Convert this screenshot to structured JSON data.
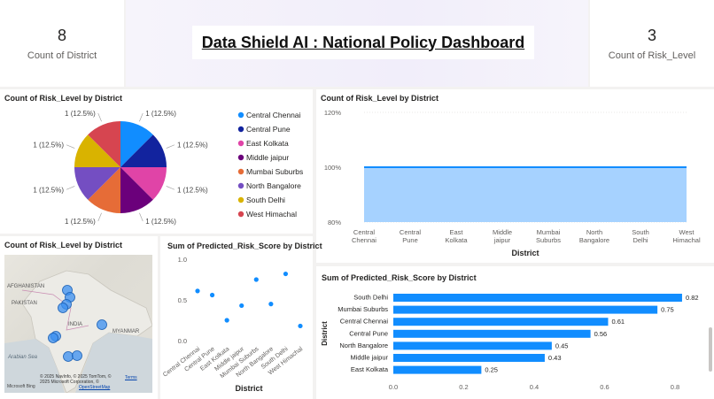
{
  "kpis": {
    "district_count": {
      "value": "8",
      "label": "Count of District"
    },
    "risk_level_count": {
      "value": "3",
      "label": "Count of Risk_Level"
    }
  },
  "header": {
    "title": "Data Shield AI : National Policy Dashboard"
  },
  "colors": {
    "pie": [
      "#118dff",
      "#12239e",
      "#e044a7",
      "#6b007b",
      "#e66c37",
      "#744ec2",
      "#d9b300",
      "#d64550"
    ],
    "bar": "#118dff",
    "area_fill": "#a6d2ff",
    "area_line": "#118dff",
    "map_bubble": "#3b8ff0"
  },
  "pie_visual": {
    "title": "Count of Risk_Level by District",
    "chart_data": {
      "type": "pie",
      "categories": [
        "Central Chennai",
        "Central Pune",
        "East Kolkata",
        "Middle jaipur",
        "Mumbai Suburbs",
        "North Bangalore",
        "South Delhi",
        "West Himachal"
      ],
      "values": [
        1,
        1,
        1,
        1,
        1,
        1,
        1,
        1
      ],
      "data_labels": [
        "1 (12.5%)",
        "1 (12.5%)",
        "1 (12.5%)",
        "1 (12.5%)",
        "1 (12.5%)",
        "1 (12.5%)",
        "1 (12.5%)",
        "1 (12.5%)"
      ],
      "legend_placement": "right"
    }
  },
  "area_visual": {
    "title": "Count of Risk_Level by District",
    "chart_data": {
      "type": "area",
      "categories": [
        "Central Chennai",
        "Central Pune",
        "East Kolkata",
        "Middle jaipur",
        "Mumbai Suburbs",
        "North Bangalore",
        "South Delhi",
        "West Himachal"
      ],
      "values": [
        100,
        100,
        100,
        100,
        100,
        100,
        100,
        100
      ],
      "xlabel": "District",
      "ylim": [
        80,
        120
      ],
      "yticks": [
        "80%",
        "100%",
        "120%"
      ],
      "grid": true
    }
  },
  "map_visual": {
    "title": "Count of Risk_Level by District",
    "labels": [
      "AFGHANISTAN",
      "PAKISTAN",
      "INDIA",
      "MYANMAR",
      "Arabian Sea"
    ],
    "attribution": [
      "© 2025 NavInfo, © 2025 TomTom, ©",
      "2025 Microsoft Corporation, ©",
      "OpenStreetMap"
    ],
    "terms": "Terms",
    "logo": "Microsoft Bing"
  },
  "scatter_visual": {
    "title": "Sum of Predicted_Risk_Score by District",
    "chart_data": {
      "type": "scatter",
      "categories": [
        "Central Chennai",
        "Central Pune",
        "East Kolkata",
        "Middle jaipur",
        "Mumbai Suburbs",
        "North Bangalore",
        "South Delhi",
        "West Himachal"
      ],
      "values": [
        0.61,
        0.56,
        0.25,
        0.43,
        0.75,
        0.45,
        0.82,
        0.18
      ],
      "xlabel": "District",
      "ylim": [
        0,
        1
      ],
      "yticks": [
        "0.0",
        "0.5",
        "1.0"
      ]
    }
  },
  "hbar_visual": {
    "title": "Sum of Predicted_Risk_Score by District",
    "chart_data": {
      "type": "bar",
      "orientation": "horizontal",
      "categories": [
        "South Delhi",
        "Mumbai Suburbs",
        "Central Chennai",
        "Central Pune",
        "North Bangalore",
        "Middle jaipur",
        "East Kolkata"
      ],
      "values": [
        0.82,
        0.75,
        0.61,
        0.56,
        0.45,
        0.43,
        0.25
      ],
      "data_labels": [
        "0.82",
        "0.75",
        "0.61",
        "0.56",
        "0.45",
        "0.43",
        "0.25"
      ],
      "ylabel": "District",
      "xlim": [
        0,
        0.8
      ],
      "xticks": [
        "0.0",
        "0.2",
        "0.4",
        "0.6",
        "0.8"
      ]
    }
  }
}
